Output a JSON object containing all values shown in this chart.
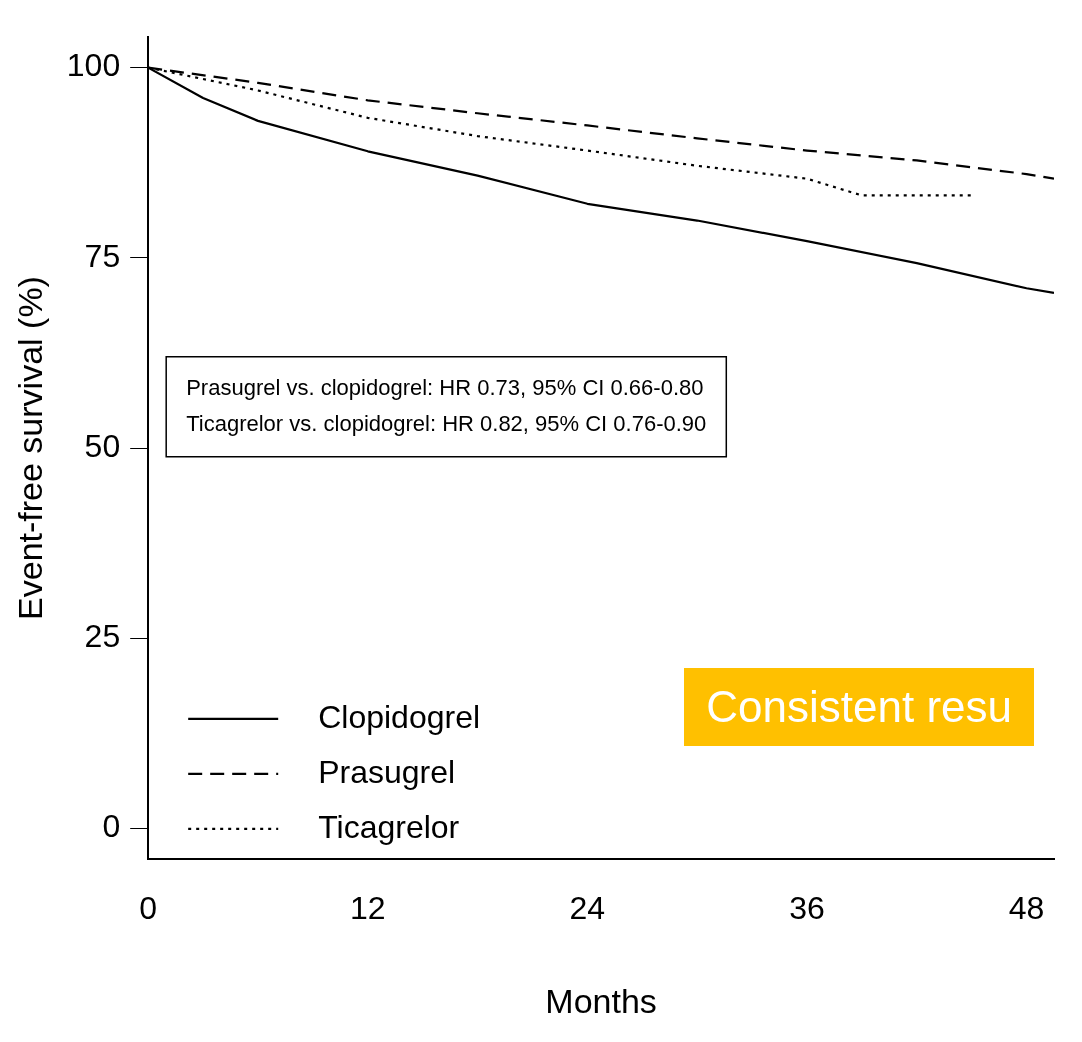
{
  "chart_data": {
    "type": "line",
    "xlabel": "Months",
    "ylabel": "Event-free survival (%)",
    "series": [
      {
        "name": "Clopidogrel",
        "color": "#000000",
        "line_style": "solid",
        "x": [
          0,
          3,
          6,
          12,
          18,
          24,
          30,
          36,
          42,
          48,
          49.5
        ],
        "values": [
          100,
          96,
          93,
          89,
          85.8,
          82.1,
          79.9,
          77.2,
          74.3,
          71,
          70.4
        ]
      },
      {
        "name": "Prasugrel",
        "color": "#000000",
        "line_style": "dashed",
        "x": [
          0,
          6,
          12,
          18,
          24,
          30,
          36,
          42,
          48,
          49.5
        ],
        "values": [
          100,
          98,
          95.7,
          94,
          92.4,
          90.7,
          89.1,
          87.8,
          86,
          85.4
        ]
      },
      {
        "name": "Ticagrelor",
        "color": "#000000",
        "line_style": "dotted",
        "x": [
          0,
          6,
          12,
          18,
          24,
          30,
          36,
          39,
          45
        ],
        "values": [
          100,
          97,
          93.4,
          91,
          89.1,
          87.1,
          85.4,
          83.2,
          83.2
        ]
      }
    ],
    "xlim": [
      0,
      49.5
    ],
    "xticks": [
      0,
      12,
      24,
      36,
      48
    ],
    "ylim": [
      -4,
      104
    ],
    "yticks": [
      0,
      25,
      50,
      75,
      100
    ],
    "grid": false,
    "legend": "bottom left",
    "marker": "none",
    "annotations": [
      "Prasugrel vs. clopidogrel: HR 0.73, 95% CI 0.66-0.80",
      "Ticagrelor vs. clopidogrel: HR 0.82, 95% CI 0.76-0.90",
      "Consistent resu"
    ]
  }
}
